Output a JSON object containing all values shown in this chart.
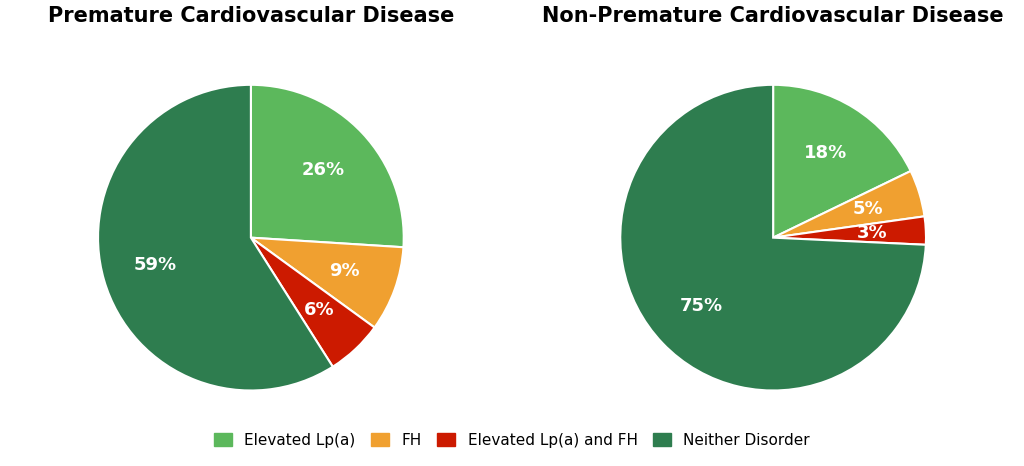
{
  "chart1_title": "Premature Cardiovascular Disease",
  "chart2_title": "Non-Premature Cardiovascular Disease",
  "chart1_values": [
    26,
    9,
    6,
    59
  ],
  "chart2_values": [
    18,
    5,
    3,
    75
  ],
  "labels": [
    "Elevated Lp(a)",
    "FH",
    "Elevated Lp(a) and FH",
    "Neither Disorder"
  ],
  "colors": [
    "#5cb85c",
    "#f0a030",
    "#cc1a00",
    "#2e7d4f"
  ],
  "pct_labels_chart1": [
    "26%",
    "9%",
    "6%",
    "59%"
  ],
  "pct_labels_chart2": [
    "18%",
    "5%",
    "3%",
    "75%"
  ],
  "startangle": 90,
  "title_fontsize": 15,
  "pct_fontsize": 13,
  "legend_fontsize": 11,
  "background_color": "#ffffff",
  "text_color": "#ffffff"
}
